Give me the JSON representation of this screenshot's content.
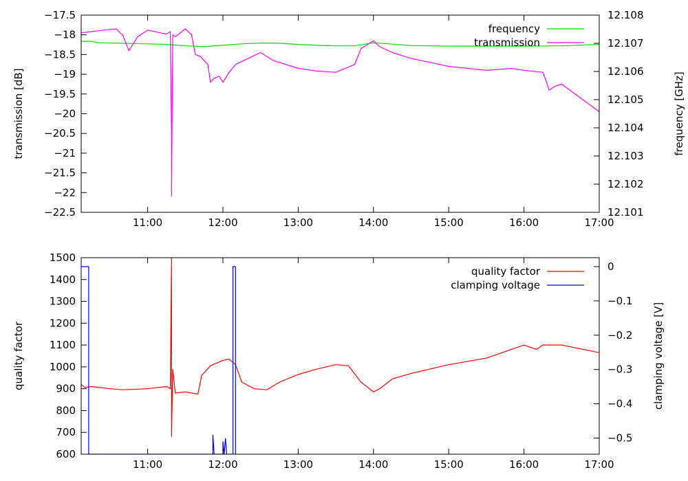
{
  "chart_data": [
    {
      "type": "line",
      "xlabel": "",
      "x_range": [
        "10:07",
        "17:00"
      ],
      "x_ticks": [
        "11:00",
        "12:00",
        "13:00",
        "14:00",
        "15:00",
        "16:00",
        "17:00"
      ],
      "y_left": {
        "label": "transmission [dB]",
        "range": [
          -22.5,
          -17.5
        ],
        "ticks": [
          "-17.5",
          "-18",
          "-18.5",
          "-19",
          "-19.5",
          "-20",
          "-20.5",
          "-21",
          "-21.5",
          "-22",
          "-22.5"
        ]
      },
      "y_right": {
        "label": "frequency [GHz]",
        "range": [
          12.101,
          12.108
        ],
        "ticks": [
          "12.108",
          "12.107",
          "12.106",
          "12.105",
          "12.104",
          "12.103",
          "12.102",
          "12.101"
        ]
      },
      "grid": false,
      "legend_position": "top-right",
      "series": [
        {
          "name": "frequency",
          "axis": "right",
          "color": "#00dd00",
          "points": [
            [
              "10:07",
              12.10707
            ],
            [
              "10:15",
              12.10707
            ],
            [
              "10:20",
              12.10702
            ],
            [
              "10:40",
              12.107
            ],
            [
              "11:00",
              12.10698
            ],
            [
              "11:15",
              12.10696
            ],
            [
              "11:30",
              12.10691
            ],
            [
              "11:45",
              12.10688
            ],
            [
              "12:00",
              12.10693
            ],
            [
              "12:15",
              12.10698
            ],
            [
              "12:30",
              12.10701
            ],
            [
              "12:45",
              12.107
            ],
            [
              "13:00",
              12.10696
            ],
            [
              "13:15",
              12.10693
            ],
            [
              "13:30",
              12.10691
            ],
            [
              "13:45",
              12.10691
            ],
            [
              "14:00",
              12.10702
            ],
            [
              "14:15",
              12.10697
            ],
            [
              "14:30",
              12.10692
            ],
            [
              "15:00",
              12.1069
            ],
            [
              "15:30",
              12.1069
            ],
            [
              "16:00",
              12.1069
            ],
            [
              "16:30",
              12.10691
            ],
            [
              "17:00",
              12.10696
            ]
          ]
        },
        {
          "name": "transmission",
          "axis": "left",
          "color": "#ff00ff",
          "points": [
            [
              "10:07",
              -17.95
            ],
            [
              "10:15",
              -17.92
            ],
            [
              "10:25",
              -17.88
            ],
            [
              "10:35",
              -17.85
            ],
            [
              "10:38",
              -17.95
            ],
            [
              "10:40",
              -18.0
            ],
            [
              "10:45",
              -18.4
            ],
            [
              "10:47",
              -18.3
            ],
            [
              "10:52",
              -18.05
            ],
            [
              "11:00",
              -17.88
            ],
            [
              "11:10",
              -17.95
            ],
            [
              "11:15",
              -17.98
            ],
            [
              "11:18",
              -17.92
            ],
            [
              "11:19",
              -20.6
            ],
            [
              "11:19",
              -22.1
            ],
            [
              "11:20",
              -18.0
            ],
            [
              "11:22",
              -18.05
            ],
            [
              "11:30",
              -17.85
            ],
            [
              "11:35",
              -18.0
            ],
            [
              "11:38",
              -18.5
            ],
            [
              "11:42",
              -18.55
            ],
            [
              "11:48",
              -18.75
            ],
            [
              "11:50",
              -19.2
            ],
            [
              "11:53",
              -19.1
            ],
            [
              "11:57",
              -19.05
            ],
            [
              "12:00",
              -19.2
            ],
            [
              "12:05",
              -18.95
            ],
            [
              "12:10",
              -18.75
            ],
            [
              "12:20",
              -18.6
            ],
            [
              "12:30",
              -18.45
            ],
            [
              "12:40",
              -18.65
            ],
            [
              "12:50",
              -18.75
            ],
            [
              "13:00",
              -18.85
            ],
            [
              "13:15",
              -18.92
            ],
            [
              "13:30",
              -18.95
            ],
            [
              "13:45",
              -18.75
            ],
            [
              "13:50",
              -18.35
            ],
            [
              "14:00",
              -18.15
            ],
            [
              "14:05",
              -18.3
            ],
            [
              "14:15",
              -18.45
            ],
            [
              "14:30",
              -18.6
            ],
            [
              "15:00",
              -18.8
            ],
            [
              "15:30",
              -18.9
            ],
            [
              "15:50",
              -18.85
            ],
            [
              "16:00",
              -18.9
            ],
            [
              "16:15",
              -18.95
            ],
            [
              "16:18",
              -19.2
            ],
            [
              "16:20",
              -19.4
            ],
            [
              "16:25",
              -19.3
            ],
            [
              "16:30",
              -19.25
            ],
            [
              "17:00",
              -19.95
            ]
          ]
        }
      ]
    },
    {
      "type": "line",
      "xlabel": "",
      "x_range": [
        "10:07",
        "17:00"
      ],
      "x_ticks": [
        "11:00",
        "12:00",
        "13:00",
        "14:00",
        "15:00",
        "16:00",
        "17:00"
      ],
      "y_left": {
        "label": "quality factor",
        "range": [
          600,
          1500
        ],
        "ticks": [
          "1500",
          "1400",
          "1300",
          "1200",
          "1100",
          "1000",
          "900",
          "800",
          "700",
          "600"
        ]
      },
      "y_right": {
        "label": "clamping voltage [V]",
        "range": [
          -0.547,
          0.026
        ],
        "ticks": [
          "0",
          "-0.1",
          "-0.2",
          "-0.3",
          "-0.4",
          "-0.5"
        ]
      },
      "grid": false,
      "legend_position": "top-right",
      "series": [
        {
          "name": "quality factor",
          "axis": "left",
          "color": "#ff0000",
          "points": [
            [
              "10:07",
              920
            ],
            [
              "10:10",
              905
            ],
            [
              "10:15",
              910
            ],
            [
              "10:30",
              900
            ],
            [
              "10:40",
              895
            ],
            [
              "11:00",
              900
            ],
            [
              "11:15",
              910
            ],
            [
              "11:18",
              900
            ],
            [
              "11:19",
              1500
            ],
            [
              "11:19",
              680
            ],
            [
              "11:20",
              990
            ],
            [
              "11:22",
              880
            ],
            [
              "11:30",
              885
            ],
            [
              "11:40",
              875
            ],
            [
              "11:43",
              960
            ],
            [
              "11:50",
              1005
            ],
            [
              "12:00",
              1030
            ],
            [
              "12:05",
              1035
            ],
            [
              "12:10",
              1010
            ],
            [
              "12:15",
              930
            ],
            [
              "12:25",
              900
            ],
            [
              "12:35",
              895
            ],
            [
              "12:45",
              930
            ],
            [
              "13:00",
              965
            ],
            [
              "13:15",
              990
            ],
            [
              "13:30",
              1010
            ],
            [
              "13:40",
              1005
            ],
            [
              "13:50",
              930
            ],
            [
              "14:00",
              885
            ],
            [
              "14:05",
              900
            ],
            [
              "14:15",
              945
            ],
            [
              "14:30",
              970
            ],
            [
              "15:00",
              1010
            ],
            [
              "15:30",
              1040
            ],
            [
              "16:00",
              1100
            ],
            [
              "16:10",
              1080
            ],
            [
              "16:15",
              1100
            ],
            [
              "16:30",
              1100
            ],
            [
              "17:00",
              1065
            ]
          ]
        },
        {
          "name": "clamping voltage",
          "axis": "right",
          "color": "#0000ff",
          "points": [
            [
              "10:07",
              0
            ],
            [
              "10:13",
              0
            ],
            [
              "10:13",
              -0.547
            ],
            [
              "11:52",
              -0.547
            ],
            [
              "11:52",
              -0.49
            ],
            [
              "11:53",
              -0.547
            ],
            [
              "12:00",
              -0.547
            ],
            [
              "12:00",
              -0.51
            ],
            [
              "12:01",
              -0.547
            ],
            [
              "12:02",
              -0.5
            ],
            [
              "12:03",
              -0.547
            ],
            [
              "12:08",
              -0.547
            ],
            [
              "12:08",
              0
            ],
            [
              "12:10",
              0
            ],
            [
              "12:10",
              -0.547
            ]
          ]
        }
      ]
    }
  ]
}
